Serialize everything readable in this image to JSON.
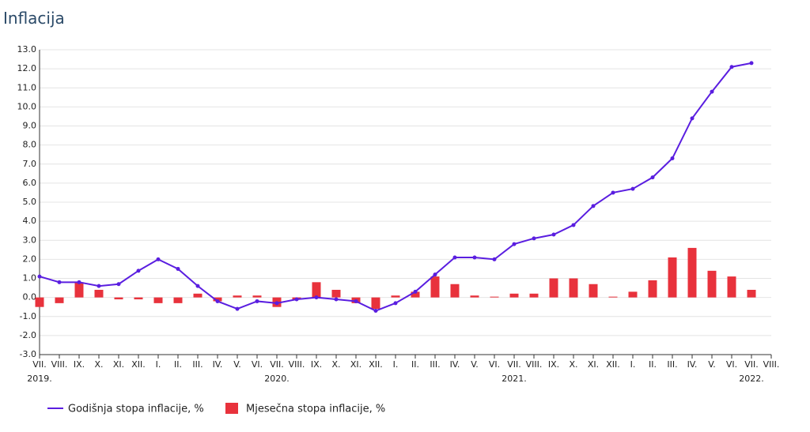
{
  "chart_data": {
    "type": "line_bar",
    "title": "Inflacija",
    "categories": [
      "VII.",
      "VIII.",
      "IX.",
      "X.",
      "XI.",
      "XII.",
      "I.",
      "II.",
      "III.",
      "IV.",
      "V.",
      "VI.",
      "VII.",
      "VIII.",
      "IX.",
      "X.",
      "XI.",
      "XII.",
      "I.",
      "II.",
      "III.",
      "IV.",
      "V.",
      "VI.",
      "VII.",
      "VIII.",
      "IX.",
      "X.",
      "XI.",
      "XII.",
      "I.",
      "II.",
      "III.",
      "IV.",
      "V.",
      "VI.",
      "VII.",
      "VIII."
    ],
    "year_labels": [
      {
        "category": 0,
        "label": "2019."
      },
      {
        "category": 12,
        "label": "2020."
      },
      {
        "category": 24,
        "label": "2021."
      },
      {
        "category": 36,
        "label": "2022."
      }
    ],
    "series": [
      {
        "name": "Godišnja stopa inflacije, %",
        "kind": "line",
        "color": "#5a1ee0",
        "values": [
          1.1,
          0.8,
          0.8,
          0.6,
          0.7,
          1.4,
          2.0,
          1.5,
          0.6,
          -0.2,
          -0.6,
          -0.2,
          -0.3,
          -0.1,
          0.0,
          -0.1,
          -0.2,
          -0.7,
          -0.3,
          0.3,
          1.2,
          2.1,
          2.1,
          2.0,
          2.8,
          3.1,
          3.3,
          3.8,
          4.8,
          5.5,
          5.7,
          6.3,
          7.3,
          9.4,
          10.8,
          12.1,
          12.3,
          null
        ]
      },
      {
        "name": "Mjesečna stopa inflacije, %",
        "kind": "bar",
        "color": "#e8323c",
        "values": [
          -0.5,
          -0.3,
          0.8,
          0.4,
          -0.1,
          -0.1,
          -0.3,
          -0.3,
          0.2,
          -0.2,
          0.1,
          0.1,
          -0.5,
          -0.1,
          0.8,
          0.4,
          -0.3,
          -0.6,
          0.1,
          0.3,
          1.1,
          0.7,
          0.1,
          0.0,
          0.2,
          0.2,
          1.0,
          1.0,
          0.7,
          0.0,
          0.3,
          0.9,
          2.1,
          2.6,
          1.4,
          1.1,
          0.4,
          null
        ]
      }
    ],
    "ylim": [
      -3,
      13
    ],
    "yticks": [
      {
        "value": 13,
        "label": "13.0"
      },
      {
        "value": 12,
        "label": "12.0"
      },
      {
        "value": 11,
        "label": "11.0"
      },
      {
        "value": 10,
        "label": "10.0"
      },
      {
        "value": 9,
        "label": "9.0"
      },
      {
        "value": 8,
        "label": "8.0"
      },
      {
        "value": 7,
        "label": "7.0"
      },
      {
        "value": 6,
        "label": "6.0"
      },
      {
        "value": 5,
        "label": "5.0"
      },
      {
        "value": 4,
        "label": "4.0"
      },
      {
        "value": 3,
        "label": "3.0"
      },
      {
        "value": 2,
        "label": "2.0"
      },
      {
        "value": 1,
        "label": "1.0"
      },
      {
        "value": 0,
        "label": "0.0"
      },
      {
        "value": -1,
        "label": "-1.0"
      },
      {
        "value": -2,
        "label": "-2.0"
      },
      {
        "value": -3,
        "label": "-3.0"
      }
    ],
    "grid": true,
    "legend": "bottom-left"
  }
}
